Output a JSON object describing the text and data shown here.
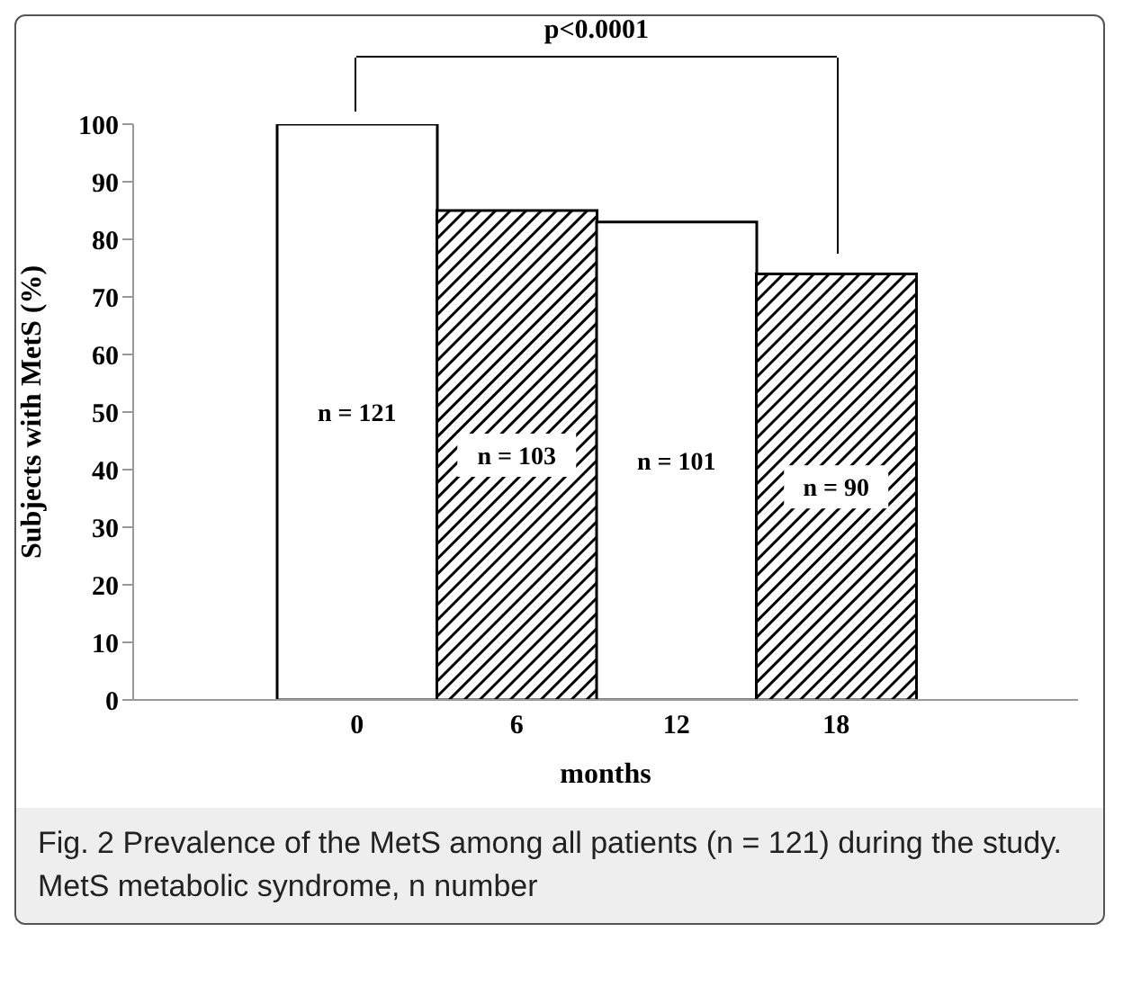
{
  "chart_data": {
    "type": "bar",
    "categories": [
      "0",
      "6",
      "12",
      "18"
    ],
    "values": [
      100,
      85,
      83,
      74
    ],
    "colors": [
      "#ffffff",
      "#000000",
      "#ffffff",
      "#000000"
    ],
    "xlabel": "months",
    "ylabel": "Subjects with MetS (%)",
    "ylim": [
      0,
      100
    ],
    "yticks": [
      0,
      10,
      20,
      30,
      40,
      50,
      60,
      70,
      80,
      90,
      100
    ],
    "grid": false,
    "legend": false,
    "annotations": [
      "p<0.0001",
      "Fig. 2 Prevalence of the MetS among all patients (n = 121) during the study. MetS metabolic syndrome, n number",
      "n = 121",
      "n = 103",
      "n = 101",
      "n = 90"
    ]
  }
}
